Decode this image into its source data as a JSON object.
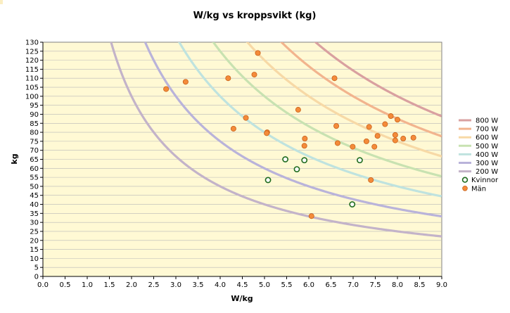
{
  "chart_data": {
    "type": "scatter",
    "title": "W/kg vs kroppsvikt (kg)",
    "xlabel": "W/kg",
    "ylabel": "kg",
    "xlim": [
      0,
      9
    ],
    "ylim": [
      0,
      130
    ],
    "xticks": [
      "0.0",
      "0.5",
      "1.0",
      "1.5",
      "2.0",
      "2.5",
      "3.0",
      "3.5",
      "4.0",
      "4.5",
      "5.0",
      "5.5",
      "6.0",
      "6.5",
      "7.0",
      "7.5",
      "8.0",
      "8.5",
      "9.0"
    ],
    "yticks": [
      "0",
      "5",
      "10",
      "15",
      "20",
      "25",
      "30",
      "35",
      "40",
      "45",
      "50",
      "55",
      "60",
      "65",
      "70",
      "75",
      "80",
      "85",
      "90",
      "95",
      "100",
      "105",
      "110",
      "115",
      "120",
      "125",
      "130"
    ],
    "grid": "horizontal",
    "legend_position": "right",
    "curves": [
      {
        "name": "800 W",
        "watts": 800,
        "color": "#d9a0a0"
      },
      {
        "name": "700 W",
        "watts": 700,
        "color": "#f2b48e"
      },
      {
        "name": "600 W",
        "watts": 600,
        "color": "#f7d9a6"
      },
      {
        "name": "500 W",
        "watts": 500,
        "color": "#c8e2b1"
      },
      {
        "name": "400 W",
        "watts": 400,
        "color": "#bfe3df"
      },
      {
        "name": "300 W",
        "watts": 300,
        "color": "#b9b3da"
      },
      {
        "name": "200 W",
        "watts": 200,
        "color": "#c3b3c9"
      }
    ],
    "series": [
      {
        "name": "Kvinnor",
        "marker": "open-circle",
        "color": "#1e6b1e",
        "points": [
          [
            5.47,
            65
          ],
          [
            5.73,
            59.5
          ],
          [
            5.9,
            64.5
          ],
          [
            5.08,
            53.5
          ],
          [
            7.15,
            64.5
          ],
          [
            6.98,
            40
          ]
        ]
      },
      {
        "name": "Män",
        "marker": "filled-circle",
        "color": "#f48b3a",
        "points": [
          [
            2.78,
            104
          ],
          [
            3.22,
            108
          ],
          [
            4.18,
            110
          ],
          [
            4.77,
            112
          ],
          [
            4.85,
            124
          ],
          [
            6.58,
            110
          ],
          [
            4.3,
            82
          ],
          [
            4.58,
            88
          ],
          [
            5.06,
            80
          ],
          [
            5.05,
            79.5
          ],
          [
            5.76,
            92.5
          ],
          [
            5.91,
            76.5
          ],
          [
            5.9,
            72.5
          ],
          [
            6.62,
            83.5
          ],
          [
            6.65,
            74
          ],
          [
            6.99,
            72
          ],
          [
            7.3,
            75
          ],
          [
            7.36,
            83
          ],
          [
            7.4,
            53.5
          ],
          [
            7.48,
            72
          ],
          [
            7.55,
            78
          ],
          [
            7.72,
            84.5
          ],
          [
            7.85,
            89
          ],
          [
            7.95,
            78.5
          ],
          [
            7.95,
            75.5
          ],
          [
            8.0,
            87
          ],
          [
            8.13,
            76.5
          ],
          [
            8.36,
            77
          ],
          [
            6.06,
            33.5
          ]
        ]
      }
    ]
  }
}
